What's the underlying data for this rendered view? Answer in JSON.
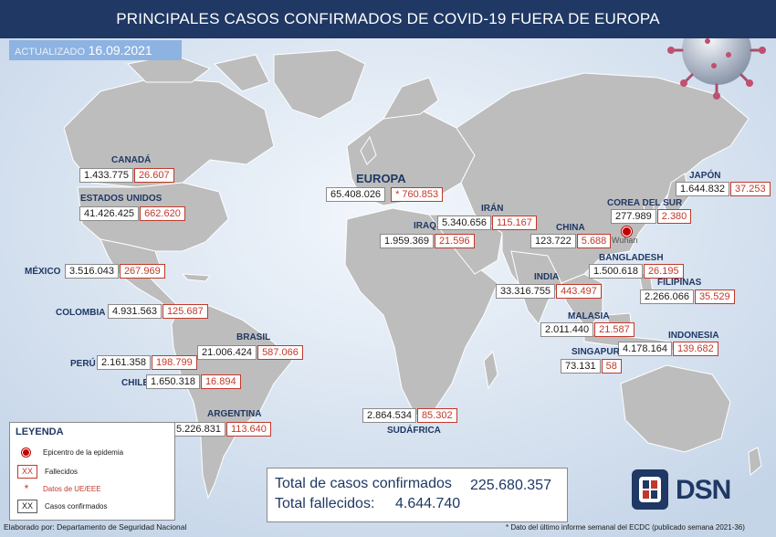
{
  "title": "PRINCIPALES CASOS CONFIRMADOS DE COVID-19 FUERA DE EUROPA",
  "updated": {
    "label": "ACTUALIZADO",
    "date": "16.09.2021"
  },
  "colors": {
    "title_bg": "#1f3864",
    "land": "#bfbfbf",
    "ocean": "#dde6f1",
    "deaths": "#c0392b",
    "confirmed_border": "#8a8a8a"
  },
  "regions": {
    "canada": {
      "name": "CANADÁ",
      "confirmed": "1.433.775",
      "deaths": "26.607"
    },
    "usa": {
      "name": "ESTADOS UNIDOS",
      "confirmed": "41.426.425",
      "deaths": "662.620"
    },
    "mexico": {
      "name": "MÉXICO",
      "confirmed": "3.516.043",
      "deaths": "267.969"
    },
    "colombia": {
      "name": "COLOMBIA",
      "confirmed": "4.931.563",
      "deaths": "125.687"
    },
    "brasil": {
      "name": "BRASIL",
      "confirmed": "21.006.424",
      "deaths": "587.066"
    },
    "peru": {
      "name": "PERÚ",
      "confirmed": "2.161.358",
      "deaths": "198.799"
    },
    "chile": {
      "name": "CHILE",
      "confirmed": "1.650.318",
      "deaths": "16.894"
    },
    "argentina": {
      "name": "ARGENTINA",
      "confirmed": "5.226.831",
      "deaths": "113.640"
    },
    "europa": {
      "name": "EUROPA",
      "confirmed": "65.408.026",
      "deaths": "* 760.853"
    },
    "iran": {
      "name": "IRÁN",
      "confirmed": "5.340.656",
      "deaths": "115.167"
    },
    "iraq": {
      "name": "IRAQ",
      "confirmed": "1.959.369",
      "deaths": "21.596"
    },
    "china": {
      "name": "CHINA",
      "confirmed": "123.722",
      "deaths": "5.688"
    },
    "india": {
      "name": "INDIA",
      "confirmed": "33.316.755",
      "deaths": "443.497"
    },
    "japon": {
      "name": "JAPÓN",
      "confirmed": "1.644.832",
      "deaths": "37.253"
    },
    "corea": {
      "name": "COREA DEL SUR",
      "confirmed": "277.989",
      "deaths": "2.380"
    },
    "bangladesh": {
      "name": "BANGLADESH",
      "confirmed": "1.500.618",
      "deaths": "26.195"
    },
    "filipinas": {
      "name": "FILIPINAS",
      "confirmed": "2.266.066",
      "deaths": "35.529"
    },
    "malasia": {
      "name": "MALASIA",
      "confirmed": "2.011.440",
      "deaths": "21.587"
    },
    "indonesia": {
      "name": "INDONESIA",
      "confirmed": "4.178.164",
      "deaths": "139.682"
    },
    "singapur": {
      "name": "SINGAPUR",
      "confirmed": "73.131",
      "deaths": "58"
    },
    "sudafrica": {
      "name": "SUDÁFRICA",
      "confirmed": "2.864.534",
      "deaths": "85.302"
    }
  },
  "wuhan": "Wuhan",
  "legend": {
    "title": "LEYENDA",
    "epicenter": "Epicentro de la epidemia",
    "deaths_symbol": "XX",
    "deaths": "Fallecidos",
    "eu_symbol": "*",
    "eu": "Datos de UE/EEE",
    "confirmed_symbol": "XX",
    "confirmed": "Casos confirmados"
  },
  "totals": {
    "confirmed_label": "Total de casos confirmados",
    "confirmed_value": "225.680.357",
    "deaths_label": "Total fallecidos:",
    "deaths_value": "4.644.740"
  },
  "footer": {
    "author": "Elaborado por: Departamento de Seguridad Nacional",
    "note": "* Dato del último informe semanal del ECDC (publicado semana 2021-36)"
  },
  "logo_text": "DSN"
}
